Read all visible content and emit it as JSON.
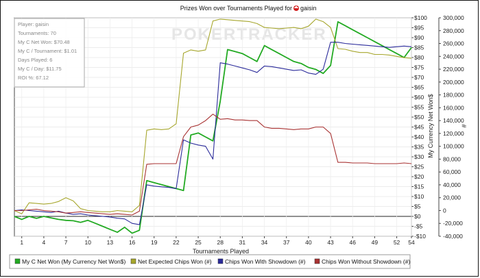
{
  "chart_data": {
    "type": "line",
    "title": "Prizes Won over Tournaments Played for",
    "player_name": "gaisin",
    "watermark": "POKERTRACKER",
    "xlabel": "Tournaments Played",
    "ylabel_left": "",
    "ylabel_right_money": "My Currency Net Won$",
    "ylabel_right_chips": "#",
    "xlim": [
      0,
      54
    ],
    "x_ticks": [
      1,
      4,
      7,
      10,
      13,
      16,
      19,
      22,
      25,
      28,
      31,
      34,
      37,
      40,
      43,
      46,
      49,
      52,
      54
    ],
    "money_ylim": [
      -10,
      100
    ],
    "money_ticks": [
      "-$10",
      "-$5",
      "$0",
      "$5",
      "$10",
      "$15",
      "$20",
      "$25",
      "$30",
      "$35",
      "$40",
      "$45",
      "$50",
      "$55",
      "$60",
      "$65",
      "$70",
      "$75",
      "$80",
      "$85",
      "$90",
      "$95",
      "$100"
    ],
    "chips_ylim": [
      -40000,
      300000
    ],
    "chips_ticks": [
      "-40,000",
      "-20,000",
      "0",
      "20,000",
      "40,000",
      "60,000",
      "80,000",
      "100,000",
      "120,000",
      "140,000",
      "160,000",
      "180,000",
      "200,000",
      "220,000",
      "240,000",
      "260,000",
      "280,000",
      "300,000"
    ],
    "stats": [
      "Player: gaisin",
      "Tournaments: 70",
      "My C Net Won: $70.48",
      "My C / Tournament: $1.01",
      "Days Played: 6",
      "My C / Day: $11.75",
      "ROI %: 67.12"
    ],
    "series": [
      {
        "name": "My C Net Won (My Currency Net Won$)",
        "color": "#22aa22",
        "axis": "money",
        "x": [
          0,
          1,
          2,
          3,
          4,
          5,
          6,
          7,
          8,
          9,
          10,
          11,
          12,
          13,
          14,
          15,
          16,
          17,
          18,
          19,
          20,
          21,
          22,
          23,
          24,
          25,
          26,
          27,
          28,
          29,
          30,
          31,
          32,
          33,
          34,
          35,
          36,
          37,
          38,
          39,
          40,
          41,
          42,
          43,
          44,
          45,
          46,
          47,
          48,
          49,
          50,
          51,
          52,
          53,
          54
        ],
        "values": [
          0,
          -1.5,
          0,
          -1,
          0,
          -0.8,
          -1.5,
          -2,
          -2.2,
          -3,
          -2,
          -3.5,
          -5,
          -6.5,
          -8,
          -5.5,
          -8.5,
          -7,
          18,
          17,
          16,
          15,
          14,
          13,
          41,
          42,
          40,
          38,
          58,
          84,
          83,
          82,
          80,
          78,
          86,
          84,
          82,
          80,
          78,
          77,
          75,
          74,
          72,
          76,
          98,
          96,
          94,
          92,
          90,
          88,
          86,
          84,
          82,
          80,
          85
        ]
      },
      {
        "name": "Net Expected Chips Won (#)",
        "color": "#a6a62c",
        "axis": "chips",
        "x": [
          0,
          1,
          2,
          3,
          4,
          5,
          6,
          7,
          8,
          9,
          10,
          11,
          12,
          13,
          14,
          15,
          16,
          17,
          18,
          19,
          20,
          21,
          22,
          23,
          24,
          25,
          26,
          27,
          28,
          29,
          30,
          31,
          32,
          33,
          34,
          35,
          36,
          37,
          38,
          39,
          40,
          41,
          42,
          43,
          44,
          45,
          46,
          47,
          48,
          49,
          50,
          51,
          52,
          53,
          54
        ],
        "values": [
          0,
          -5000,
          12000,
          11000,
          10000,
          11000,
          14000,
          20000,
          15000,
          3000,
          0,
          -1000,
          -2000,
          -2000,
          0,
          -1000,
          -2000,
          8000,
          125000,
          127000,
          126000,
          127000,
          135000,
          245000,
          250000,
          248000,
          250000,
          295000,
          298000,
          297000,
          296000,
          295000,
          294000,
          291000,
          285000,
          284000,
          283000,
          284000,
          285000,
          283000,
          287000,
          298000,
          294000,
          285000,
          252000,
          251000,
          248000,
          246000,
          246000,
          243000,
          243000,
          242000,
          240000,
          238000,
          237000
        ]
      },
      {
        "name": "Chips Won With Showdown (#)",
        "color": "#2a2a9a",
        "axis": "chips",
        "x": [
          0,
          1,
          2,
          3,
          4,
          5,
          6,
          7,
          8,
          9,
          10,
          11,
          12,
          13,
          14,
          15,
          16,
          17,
          18,
          19,
          20,
          21,
          22,
          23,
          24,
          25,
          26,
          27,
          28,
          29,
          30,
          31,
          32,
          33,
          34,
          35,
          36,
          37,
          38,
          39,
          40,
          41,
          42,
          43,
          44,
          45,
          46,
          47,
          48,
          49,
          50,
          51,
          52,
          53,
          54
        ],
        "values": [
          0,
          1000,
          0,
          -1000,
          -2000,
          -3000,
          -1000,
          -4000,
          -6000,
          -5000,
          -7000,
          -8000,
          -9000,
          -10000,
          -12000,
          -13000,
          -20000,
          -22000,
          40000,
          38000,
          37000,
          36000,
          34000,
          110000,
          105000,
          102000,
          100000,
          80000,
          230000,
          228000,
          225000,
          222000,
          219000,
          215000,
          225000,
          224000,
          222000,
          220000,
          218000,
          219000,
          214000,
          212000,
          220000,
          262000,
          262000,
          260000,
          259000,
          258000,
          257000,
          256000,
          255000,
          254000,
          255000,
          256000,
          255000
        ]
      },
      {
        "name": "Chips Won Without Showdown (#)",
        "color": "#a83232",
        "axis": "chips",
        "x": [
          0,
          1,
          2,
          3,
          4,
          5,
          6,
          7,
          8,
          9,
          10,
          11,
          12,
          13,
          14,
          15,
          16,
          17,
          18,
          19,
          20,
          21,
          22,
          23,
          24,
          25,
          26,
          27,
          28,
          29,
          30,
          31,
          32,
          33,
          34,
          35,
          36,
          37,
          38,
          39,
          40,
          41,
          42,
          43,
          44,
          45,
          46,
          47,
          48,
          49,
          50,
          51,
          52,
          53,
          54
        ],
        "values": [
          0,
          0,
          1000,
          2000,
          0,
          -1000,
          -2000,
          -4000,
          -3000,
          -2000,
          -3000,
          -4000,
          -5000,
          -6000,
          -5000,
          -6000,
          -7000,
          -1000,
          72000,
          73000,
          73000,
          73000,
          73000,
          115000,
          130000,
          133000,
          140000,
          150000,
          142000,
          143000,
          141000,
          141000,
          140000,
          140000,
          130000,
          128000,
          128000,
          127000,
          126000,
          127000,
          127000,
          130000,
          130000,
          120000,
          75000,
          75000,
          74000,
          74000,
          74000,
          73000,
          73000,
          73000,
          73000,
          74000,
          73000
        ]
      }
    ],
    "legend_position": "bottom",
    "grid": true
  }
}
